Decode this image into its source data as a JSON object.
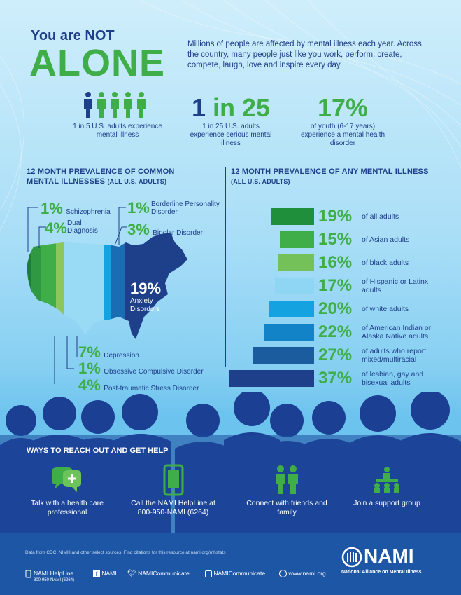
{
  "header": {
    "title_small": "You are NOT",
    "title_big": "ALONE",
    "intro": "Millions of people are affected by mental illness each year. Across the country, many people just like you work, perform, create, compete, laugh, love and inspire every day."
  },
  "stats": [
    {
      "value_prefix": "",
      "value": "",
      "caption": "1 in 5 U.S. adults experience mental illness"
    },
    {
      "value_prefix": "1",
      "value": " in 25",
      "caption": "1 in 25 U.S. adults experience serious mental illness"
    },
    {
      "value_prefix": "",
      "value": "17%",
      "caption": "of youth (6-17 years) experience a mental health disorder"
    }
  ],
  "left_section": {
    "title": "12 MONTH PREVALENCE OF COMMON MENTAL ILLNESSES",
    "subtitle": "(ALL U.S. ADULTS)",
    "items": [
      {
        "pct": "1%",
        "label": "Schizophrenia"
      },
      {
        "pct": "1%",
        "label": "Borderline Personality Disorder"
      },
      {
        "pct": "4%",
        "label": "Dual Diagnosis"
      },
      {
        "pct": "3%",
        "label": "Bipolar Disorder"
      },
      {
        "pct": "19%",
        "label": "Anxiety Disorders"
      },
      {
        "pct": "7%",
        "label": "Depression"
      },
      {
        "pct": "1%",
        "label": "Obsessive Compulsive Disorder"
      },
      {
        "pct": "4%",
        "label": "Post-traumatic Stress Disorder"
      }
    ]
  },
  "right_section": {
    "title": "12 MONTH PREVALENCE OF ANY MENTAL ILLNESS",
    "subtitle": "(ALL U.S. ADULTS)",
    "bars": [
      {
        "value": 19,
        "pct": "19%",
        "label": "of all adults",
        "color": "#1f8f3c"
      },
      {
        "value": 15,
        "pct": "15%",
        "label": "of Asian adults",
        "color": "#3fae49"
      },
      {
        "value": 16,
        "pct": "16%",
        "label": "of black adults",
        "color": "#74c15a"
      },
      {
        "value": 17,
        "pct": "17%",
        "label": "of Hispanic or Latinx adults",
        "color": "#8fd6f4"
      },
      {
        "value": 20,
        "pct": "20%",
        "label": "of white adults",
        "color": "#14a3e0"
      },
      {
        "value": 22,
        "pct": "22%",
        "label": "of American Indian or Alaska Native adults",
        "color": "#1183c6"
      },
      {
        "value": 27,
        "pct": "27%",
        "label": "of adults who report mixed/multiracial",
        "color": "#1a5c9e"
      },
      {
        "value": 37,
        "pct": "37%",
        "label": "of lesbian, gay and bisexual adults",
        "color": "#1e3f8a"
      }
    ]
  },
  "ways": {
    "title": "WAYS TO REACH OUT AND GET HELP",
    "items": [
      {
        "icon": "chat-bubbles-icon",
        "label": "Talk with a health care professional"
      },
      {
        "icon": "phone-icon",
        "label": "Call the NAMI HelpLine at 800-950-NAMI (6264)"
      },
      {
        "icon": "people-icon",
        "label": "Connect with friends and family"
      },
      {
        "icon": "support-group-icon",
        "label": "Join a support group"
      }
    ]
  },
  "footer": {
    "sources": "Data from CDC, NIMH and other select sources. Find citations for this resource at nami.org/mhstats",
    "helpline_title": "NAMI HelpLine",
    "helpline_number": "800-950-NAMI (6264)",
    "facebook": "NAMI",
    "twitter": "NAMICommunicate",
    "instagram": "NAMICommunicate",
    "website": "www.nami.org",
    "logo_text": "NAMI",
    "org_name": "National Alliance on Mental Illness"
  },
  "colors": {
    "navy": "#1e3f8a",
    "green": "#3fae49",
    "footer_blue": "#1d56a5"
  }
}
